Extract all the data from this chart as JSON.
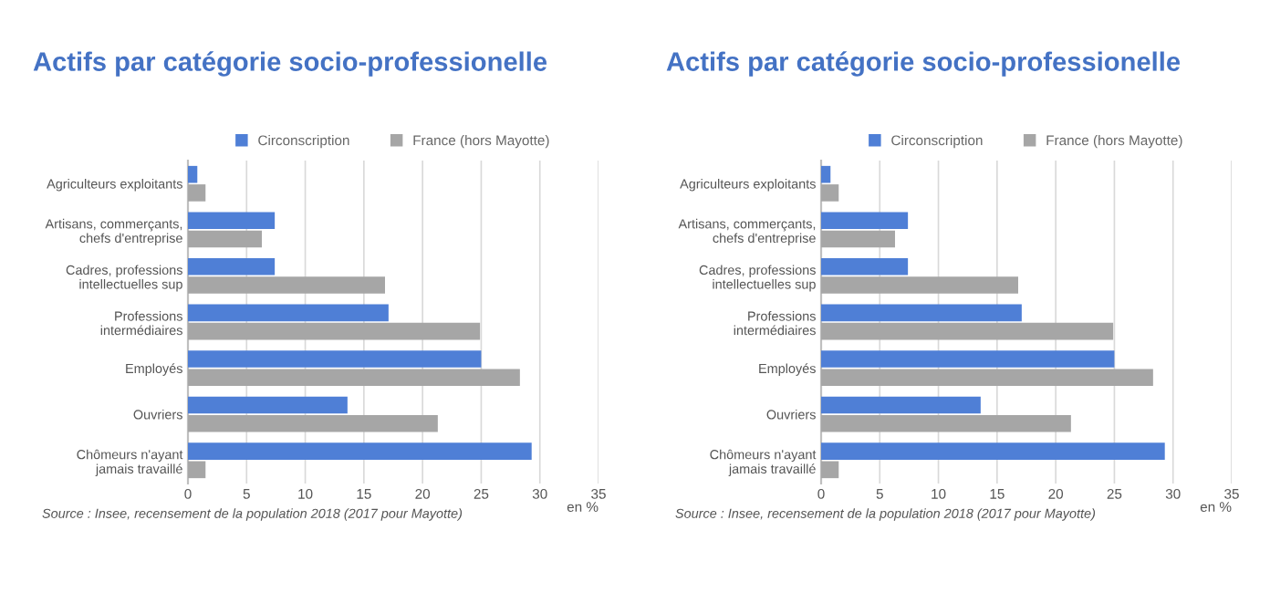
{
  "chart_data": [
    {
      "type": "bar",
      "orientation": "horizontal",
      "title": "Actifs par catégorie socio-professionelle",
      "xlabel": "en %",
      "categories": [
        "Agriculteurs exploitants",
        "Artisans, commerçants,\nchefs d'entreprise",
        "Cadres, professions\nintellectuelles sup",
        "Professions\nintermédiaires",
        "Employés",
        "Ouvriers",
        "Chômeurs n'ayant\njamais travaillé"
      ],
      "series": [
        {
          "name": "Circonscription",
          "color": "#4f7fd6",
          "values": [
            0.8,
            7.4,
            7.4,
            17.1,
            25.0,
            13.6,
            29.3
          ]
        },
        {
          "name": "France (hors Mayotte)",
          "color": "#a6a6a6",
          "values": [
            1.5,
            6.3,
            16.8,
            24.9,
            28.3,
            21.3,
            1.5
          ]
        }
      ],
      "xlim": [
        0,
        35
      ],
      "xticks": [
        0,
        5,
        10,
        15,
        20,
        25,
        30,
        35
      ],
      "grid": "x",
      "legend": "top",
      "annotations": [
        "Source : Insee, recensement de la population 2018 (2017 pour Mayotte)"
      ]
    },
    {
      "type": "bar",
      "orientation": "horizontal",
      "title": "Actifs par catégorie socio-professionelle",
      "xlabel": "en %",
      "categories": [
        "Agriculteurs exploitants",
        "Artisans, commerçants,\nchefs d'entreprise",
        "Cadres, professions\nintellectuelles sup",
        "Professions\nintermédiaires",
        "Employés",
        "Ouvriers",
        "Chômeurs n'ayant\njamais travaillé"
      ],
      "series": [
        {
          "name": "Circonscription",
          "color": "#4f7fd6",
          "values": [
            0.8,
            7.4,
            7.4,
            17.1,
            25.0,
            13.6,
            29.3
          ]
        },
        {
          "name": "France (hors Mayotte)",
          "color": "#a6a6a6",
          "values": [
            1.5,
            6.3,
            16.8,
            24.9,
            28.3,
            21.3,
            1.5
          ]
        }
      ],
      "xlim": [
        0,
        35
      ],
      "xticks": [
        0,
        5,
        10,
        15,
        20,
        25,
        30,
        35
      ],
      "grid": "x",
      "legend": "top",
      "annotations": [
        "Source : Insee, recensement de la population 2018 (2017 pour Mayotte)"
      ]
    }
  ]
}
